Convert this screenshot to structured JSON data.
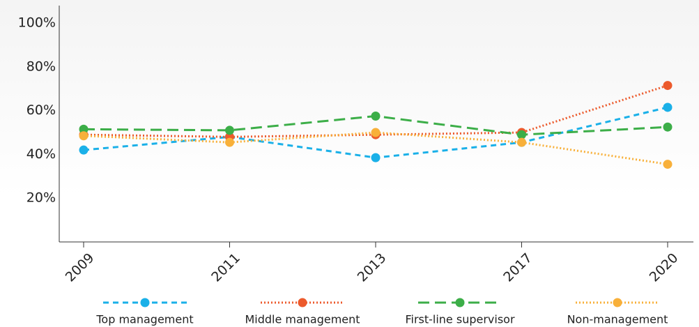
{
  "chart_data": {
    "type": "line",
    "categories": [
      "2009",
      "2011",
      "2013",
      "2017",
      "2020"
    ],
    "series": [
      {
        "name": "Top management",
        "color": "#1ab0e8",
        "dash": "dashed",
        "values": [
          42,
          48,
          38.5,
          45.5,
          61.5
        ]
      },
      {
        "name": "Middle management",
        "color": "#ec5a2c",
        "dash": "dotted",
        "values": [
          49,
          48,
          49,
          50,
          71.5
        ]
      },
      {
        "name": "First-line supervisor",
        "color": "#3cae48",
        "dash": "long-dash",
        "values": [
          51.5,
          51,
          57.5,
          49,
          52.5
        ]
      },
      {
        "name": "Non-management",
        "color": "#f8b03a",
        "dash": "dotted",
        "values": [
          48.5,
          45.5,
          50,
          45.5,
          35.5
        ]
      }
    ],
    "ylim": [
      0,
      108
    ],
    "yticks": [
      {
        "value": 20,
        "label": "20%"
      },
      {
        "value": 40,
        "label": "40%"
      },
      {
        "value": 60,
        "label": "60%"
      },
      {
        "value": 80,
        "label": "80%"
      },
      {
        "value": 100,
        "label": "100%"
      }
    ],
    "legend": "bottom"
  }
}
